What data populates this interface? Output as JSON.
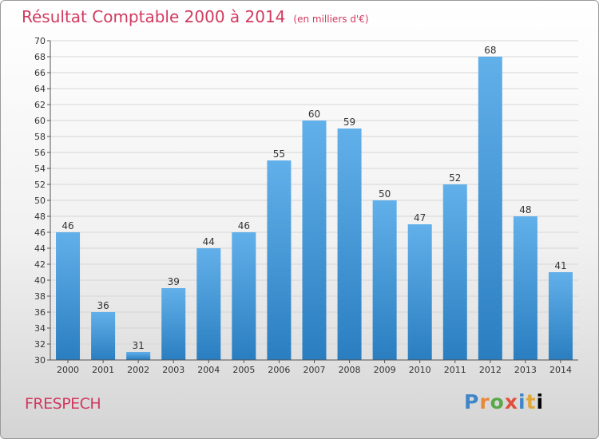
{
  "header": {
    "title": "Résultat Comptable 2000 à 2014",
    "unit": "(en milliers d'€)"
  },
  "footer": {
    "place": "FRESPECH",
    "logo_letters": [
      "P",
      "r",
      "o",
      "x",
      "i",
      "t",
      "i"
    ]
  },
  "colors": {
    "title": "#d13a5f",
    "bar_top": "#62b0ea",
    "bar_bottom": "#2a7ec0",
    "grid": "#d6d6d6",
    "axis": "#555555"
  },
  "chart_data": {
    "type": "bar",
    "title": "Résultat Comptable 2000 à 2014",
    "subtitle": "(en milliers d'€)",
    "xlabel": "",
    "ylabel": "",
    "categories": [
      "2000",
      "2001",
      "2002",
      "2003",
      "2004",
      "2005",
      "2006",
      "2007",
      "2008",
      "2009",
      "2010",
      "2011",
      "2012",
      "2013",
      "2014"
    ],
    "values": [
      46,
      36,
      31,
      39,
      44,
      46,
      55,
      60,
      59,
      50,
      47,
      52,
      68,
      48,
      41
    ],
    "ylim": [
      30,
      70
    ],
    "ytick_step": 2,
    "grid": true,
    "data_labels": true,
    "legend": "none"
  }
}
